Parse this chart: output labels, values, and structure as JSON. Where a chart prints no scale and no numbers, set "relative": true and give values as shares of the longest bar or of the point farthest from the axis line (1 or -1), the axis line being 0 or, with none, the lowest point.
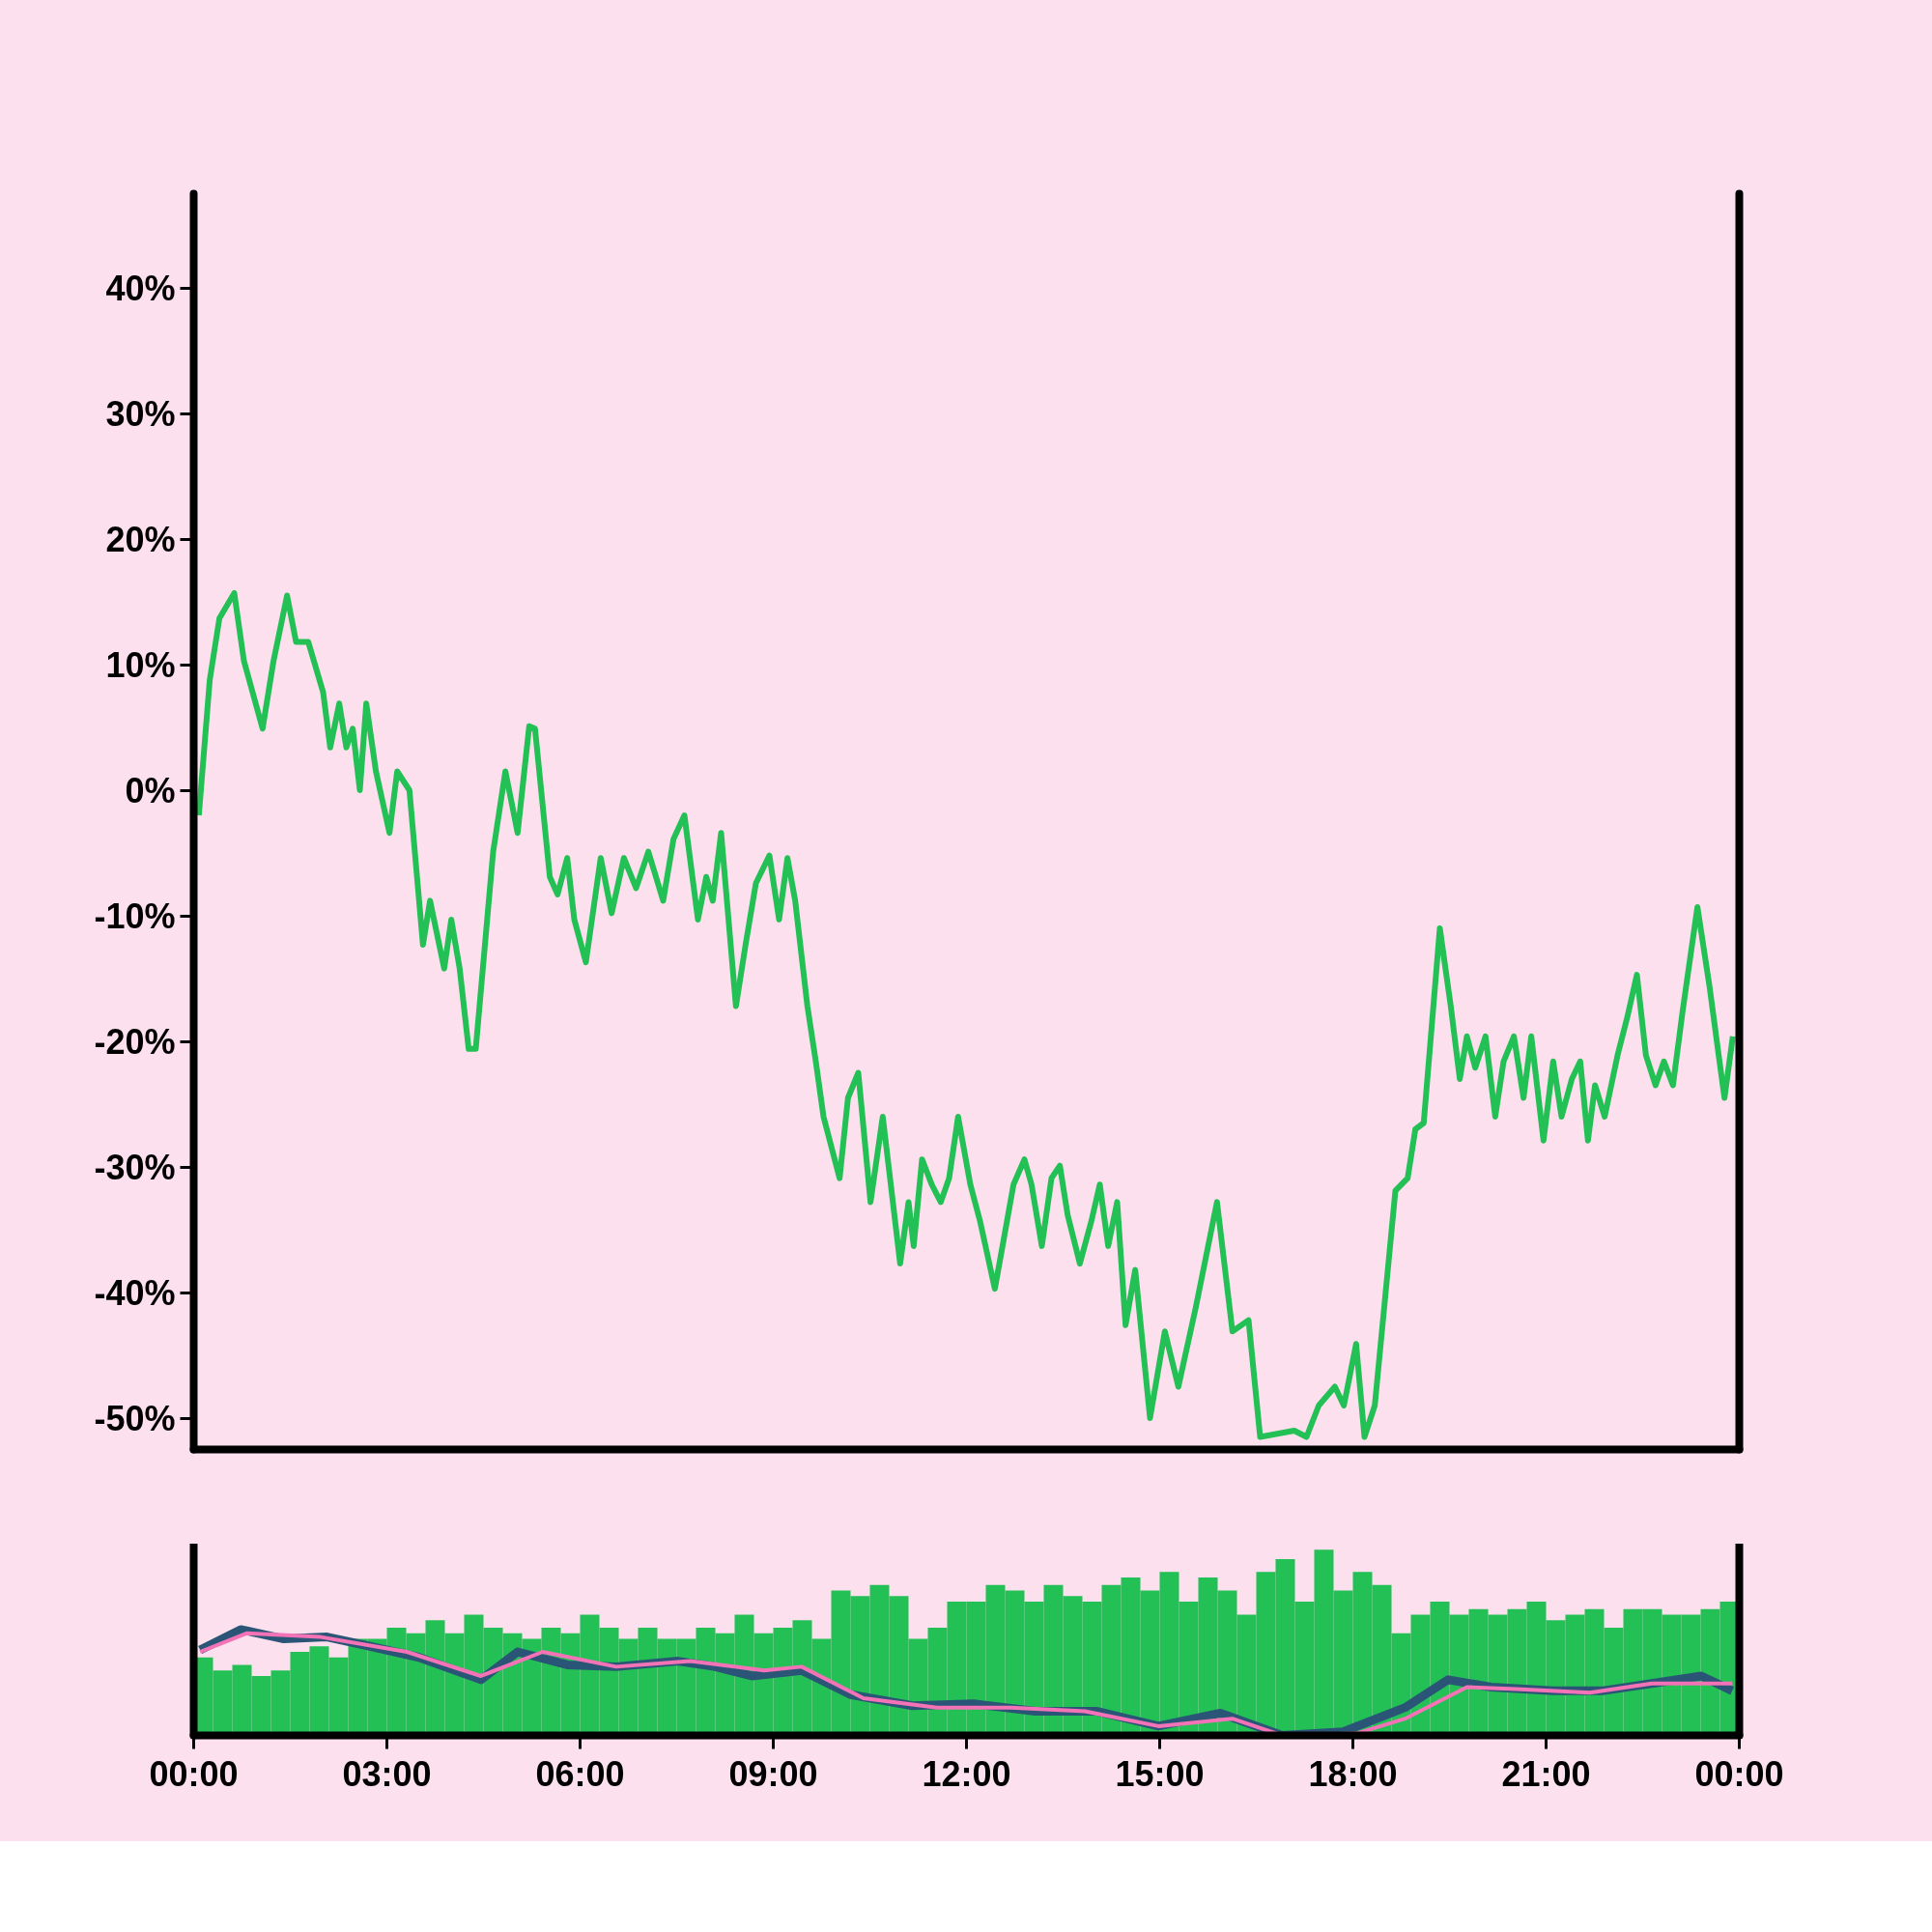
{
  "chart_data": [
    {
      "type": "line",
      "xlim": [
        0,
        24
      ],
      "ylim": [
        -52.5,
        47.5
      ],
      "tick_labels": "y",
      "yticks": [
        {
          "value": -50,
          "label": "-50%"
        },
        {
          "value": -40,
          "label": "-40%"
        },
        {
          "value": -30,
          "label": "-30%"
        },
        {
          "value": -20,
          "label": "-20%"
        },
        {
          "value": -10,
          "label": "-10%"
        },
        {
          "value": 0,
          "label": "0%"
        },
        {
          "value": 10,
          "label": "10%"
        },
        {
          "value": 20,
          "label": "20%"
        },
        {
          "value": 30,
          "label": "30%"
        },
        {
          "value": 40,
          "label": "40%"
        }
      ],
      "x": [
        0.08,
        0.25,
        0.4,
        0.63,
        0.78,
        1.07,
        1.24,
        1.45,
        1.59,
        1.78,
        2.01,
        2.12,
        2.26,
        2.37,
        2.47,
        2.58,
        2.68,
        2.83,
        3.04,
        3.16,
        3.35,
        3.56,
        3.67,
        3.89,
        4.0,
        4.13,
        4.27,
        4.38,
        4.65,
        4.84,
        5.03,
        5.21,
        5.3,
        5.53,
        5.65,
        5.8,
        5.91,
        6.09,
        6.32,
        6.49,
        6.68,
        6.87,
        7.06,
        7.29,
        7.45,
        7.62,
        7.83,
        7.96,
        8.06,
        8.19,
        8.42,
        8.57,
        8.73,
        8.94,
        9.09,
        9.22,
        9.34,
        9.53,
        9.66,
        9.78,
        10.03,
        10.16,
        10.32,
        10.51,
        10.7,
        10.97,
        11.1,
        11.18,
        11.31,
        11.46,
        11.6,
        11.73,
        11.87,
        12.06,
        12.21,
        12.44,
        12.56,
        12.73,
        12.9,
        13.01,
        13.17,
        13.32,
        13.45,
        13.57,
        13.76,
        13.94,
        14.07,
        14.2,
        14.34,
        14.47,
        14.62,
        14.85,
        15.08,
        15.29,
        15.56,
        15.89,
        16.13,
        16.38,
        16.56,
        17.09,
        17.28,
        17.47,
        17.72,
        17.86,
        18.05,
        18.18,
        18.34,
        18.66,
        18.85,
        18.97,
        19.1,
        19.35,
        19.52,
        19.66,
        19.77,
        19.9,
        20.06,
        20.21,
        20.34,
        20.5,
        20.65,
        20.77,
        20.96,
        21.11,
        21.24,
        21.4,
        21.53,
        21.65,
        21.76,
        21.91,
        22.11,
        22.26,
        22.41,
        22.55,
        22.7,
        22.83,
        22.97,
        23.12,
        23.35,
        23.54,
        23.68,
        23.77,
        23.9
      ],
      "series": [
        {
          "color": "#22c055",
          "values": [
            -2.0,
            8.8,
            13.7,
            15.7,
            10.3,
            4.9,
            10.3,
            15.5,
            11.8,
            11.8,
            7.8,
            3.4,
            6.9,
            3.4,
            4.9,
            0.0,
            6.9,
            1.5,
            -3.4,
            1.5,
            0.0,
            -12.3,
            -8.8,
            -14.2,
            -10.3,
            -14.2,
            -20.6,
            -20.6,
            -4.9,
            1.5,
            -3.4,
            5.1,
            4.9,
            -6.9,
            -8.3,
            -5.4,
            -10.3,
            -13.7,
            -5.4,
            -9.8,
            -5.4,
            -7.8,
            -4.9,
            -8.8,
            -3.9,
            -2.0,
            -10.3,
            -6.9,
            -8.8,
            -3.4,
            -17.2,
            -12.3,
            -7.4,
            -5.2,
            -10.3,
            -5.4,
            -8.8,
            -17.2,
            -21.6,
            -26.0,
            -30.9,
            -24.5,
            -22.5,
            -32.8,
            -26.0,
            -37.7,
            -32.8,
            -36.3,
            -29.4,
            -31.4,
            -32.8,
            -30.9,
            -26.0,
            -31.4,
            -34.3,
            -39.7,
            -36.3,
            -31.4,
            -29.4,
            -31.4,
            -36.3,
            -30.9,
            -29.9,
            -33.8,
            -37.7,
            -34.3,
            -31.4,
            -36.3,
            -32.8,
            -42.6,
            -38.2,
            -50.0,
            -43.1,
            -47.5,
            -41.2,
            -32.8,
            -43.1,
            -42.2,
            -51.5,
            -51.0,
            -51.5,
            -49.0,
            -47.5,
            -49.0,
            -44.1,
            -51.5,
            -49.0,
            -31.9,
            -30.9,
            -27.0,
            -26.5,
            -11.0,
            -17.2,
            -23.0,
            -19.6,
            -22.1,
            -19.6,
            -26.0,
            -21.6,
            -19.6,
            -24.5,
            -19.6,
            -27.9,
            -21.6,
            -26.0,
            -23.0,
            -21.6,
            -27.9,
            -23.5,
            -26.0,
            -21.1,
            -18.1,
            -14.7,
            -21.1,
            -23.5,
            -21.6,
            -23.5,
            -17.6,
            -9.3,
            -15.7,
            -21.1,
            -24.5,
            -19.6
          ]
        }
      ]
    },
    {
      "type": "bar",
      "relative": true,
      "xlim": [
        0,
        24
      ],
      "tick_labels": "x",
      "xticks": [
        {
          "value": 0,
          "label": "00:00"
        },
        {
          "value": 3,
          "label": "03:00"
        },
        {
          "value": 6,
          "label": "06:00"
        },
        {
          "value": 9,
          "label": "09:00"
        },
        {
          "value": 12,
          "label": "12:00"
        },
        {
          "value": 15,
          "label": "15:00"
        },
        {
          "value": 18,
          "label": "18:00"
        },
        {
          "value": 21,
          "label": "21:00"
        },
        {
          "value": 24,
          "label": "00:00"
        }
      ],
      "x": [
        0.15,
        0.45,
        0.75,
        1.05,
        1.35,
        1.65,
        1.95,
        2.25,
        2.55,
        2.85,
        3.15,
        3.45,
        3.75,
        4.05,
        4.35,
        4.65,
        4.95,
        5.25,
        5.55,
        5.85,
        6.15,
        6.45,
        6.75,
        7.05,
        7.35,
        7.65,
        7.95,
        8.25,
        8.55,
        8.85,
        9.15,
        9.45,
        9.75,
        10.05,
        10.35,
        10.65,
        10.95,
        11.25,
        11.55,
        11.85,
        12.15,
        12.45,
        12.75,
        13.05,
        13.35,
        13.65,
        13.95,
        14.25,
        14.55,
        14.85,
        15.15,
        15.45,
        15.75,
        16.05,
        16.35,
        16.65,
        16.95,
        17.25,
        17.55,
        17.85,
        18.15,
        18.45,
        18.75,
        19.05,
        19.35,
        19.65,
        19.95,
        20.25,
        20.55,
        20.85,
        21.15,
        21.45,
        21.75,
        22.05,
        22.35,
        22.65,
        22.95,
        23.25,
        23.55,
        23.85
      ],
      "series": [
        {
          "color": "#22c055",
          "values": [
            0.42,
            0.35,
            0.38,
            0.32,
            0.35,
            0.45,
            0.48,
            0.42,
            0.52,
            0.52,
            0.58,
            0.55,
            0.62,
            0.55,
            0.65,
            0.58,
            0.55,
            0.52,
            0.58,
            0.55,
            0.65,
            0.58,
            0.52,
            0.58,
            0.52,
            0.52,
            0.58,
            0.55,
            0.65,
            0.55,
            0.58,
            0.62,
            0.52,
            0.78,
            0.75,
            0.81,
            0.75,
            0.52,
            0.58,
            0.72,
            0.72,
            0.81,
            0.78,
            0.72,
            0.81,
            0.75,
            0.72,
            0.81,
            0.85,
            0.78,
            0.88,
            0.72,
            0.85,
            0.78,
            0.65,
            0.88,
            0.95,
            0.72,
            1.0,
            0.78,
            0.88,
            0.81,
            0.55,
            0.65,
            0.72,
            0.65,
            0.68,
            0.65,
            0.68,
            0.72,
            0.62,
            0.65,
            0.68,
            0.58,
            0.68,
            0.68,
            0.65,
            0.65,
            0.68,
            0.72
          ]
        },
        {
          "type": "line",
          "color": "#2b5576",
          "x": [
            0.1,
            0.73,
            1.4,
            2.07,
            2.74,
            3.5,
            4.46,
            5.03,
            5.8,
            6.56,
            7.52,
            8.1,
            8.67,
            9.44,
            10.2,
            11.16,
            12.11,
            13.07,
            14.03,
            14.98,
            15.94,
            16.9,
            17.85,
            18.81,
            19.48,
            20.15,
            21.11,
            21.87,
            22.64,
            23.41,
            23.89
          ],
          "values": [
            0.46,
            0.57,
            0.52,
            0.53,
            0.48,
            0.42,
            0.3,
            0.45,
            0.38,
            0.37,
            0.4,
            0.37,
            0.32,
            0.35,
            0.22,
            0.16,
            0.17,
            0.13,
            0.13,
            0.05,
            0.12,
            0.0,
            0.02,
            0.15,
            0.3,
            0.26,
            0.24,
            0.24,
            0.28,
            0.32,
            0.24
          ]
        },
        {
          "type": "line",
          "color": "#f472b6",
          "x": [
            0.1,
            0.82,
            1.97,
            3.31,
            4.46,
            5.42,
            6.56,
            7.71,
            8.86,
            9.44,
            10.4,
            11.54,
            12.69,
            13.84,
            14.98,
            16.13,
            16.9,
            18.05,
            18.81,
            19.77,
            20.53,
            21.68,
            22.64,
            23.89
          ],
          "values": [
            0.45,
            0.55,
            0.53,
            0.45,
            0.32,
            0.45,
            0.37,
            0.4,
            0.35,
            0.37,
            0.2,
            0.15,
            0.15,
            0.13,
            0.05,
            0.09,
            0.0,
            0.01,
            0.09,
            0.26,
            0.25,
            0.23,
            0.28,
            0.28
          ]
        }
      ]
    }
  ]
}
